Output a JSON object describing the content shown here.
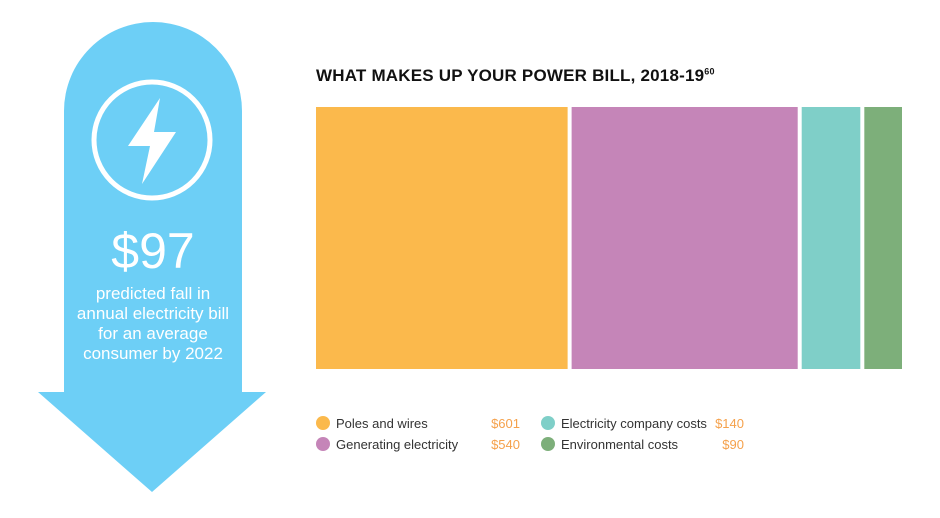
{
  "callout": {
    "amount": "$97",
    "caption": "predicted fall in annual electricity bill for an average consumer by 2022",
    "color": "#6dcff6",
    "icon": "lightning-bolt-icon"
  },
  "chart_data": {
    "type": "bar",
    "orientation": "stacked-horizontal-proportional",
    "title": "WHAT MAKES UP YOUR POWER BILL, 2018-19",
    "title_footnote": "60",
    "categories": [
      "Poles and wires",
      "Generating electricity",
      "Electricity company costs",
      "Environmental costs"
    ],
    "values": [
      601,
      540,
      140,
      90
    ],
    "labels": [
      "$601",
      "$540",
      "$140",
      "$90"
    ],
    "colors": [
      "#fbb94c",
      "#c585b8",
      "#7fcfc8",
      "#7daf7a"
    ],
    "legend": "bottom"
  }
}
